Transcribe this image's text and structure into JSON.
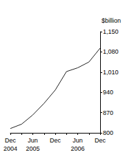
{
  "chart_data": {
    "type": "line",
    "y_label": "$billion",
    "categories": [
      "Dec\n2004",
      null,
      "Jun\n2005",
      null,
      "Dec",
      null,
      "Jun\n2006",
      null,
      "Dec"
    ],
    "values": [
      815,
      830,
      862,
      902,
      948,
      1012,
      1025,
      1045,
      1093
    ],
    "color": "#222222",
    "ylim": [
      800,
      1150
    ],
    "yticks": [
      800,
      870,
      940,
      1010,
      1080,
      1150
    ],
    "grid": false
  }
}
